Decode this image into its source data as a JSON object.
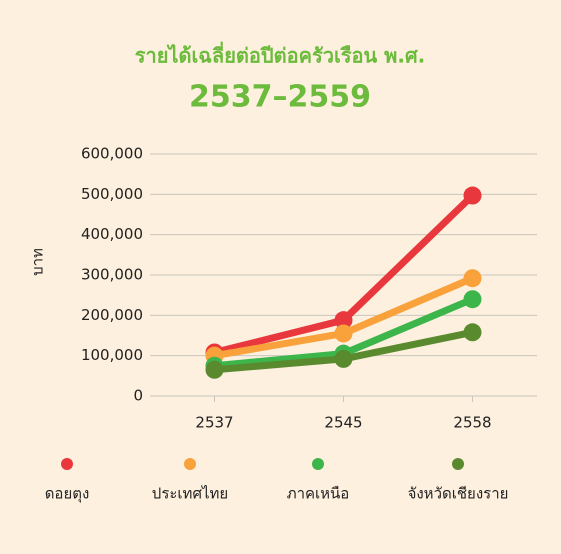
{
  "chart_data": {
    "type": "line",
    "title": "รายได้เฉลี่ยต่อปีต่อครัวเรือน พ.ศ.",
    "subtitle": "2537–2559",
    "y_label": "บาท",
    "categories": [
      "2537",
      "2545",
      "2558"
    ],
    "series": [
      {
        "name": "ดอยตุง",
        "color": "#e8383d",
        "values": [
          108000,
          188000,
          497000
        ]
      },
      {
        "name": "ประเทศไทย",
        "color": "#f9a13a",
        "values": [
          100000,
          155000,
          292000
        ]
      },
      {
        "name": "ภาคเหนือ",
        "color": "#3cb54a",
        "values": [
          75000,
          105000,
          240000
        ]
      },
      {
        "name": "จังหวัดเชียงราย",
        "color": "#5a8a2e",
        "values": [
          65000,
          92000,
          158000
        ]
      }
    ],
    "ylim": [
      0,
      600000
    ],
    "yticks": [
      0,
      {
        "value": 100000,
        "label": "100,000"
      },
      {
        "value": 200000,
        "label": "200,000"
      },
      {
        "value": 300000,
        "label": "300,000"
      },
      {
        "value": 400000,
        "label": "400,000"
      },
      {
        "value": 500000,
        "label": "500,000"
      },
      {
        "value": 600000,
        "label": "600,000"
      }
    ],
    "grid": true,
    "legend": "bottom"
  }
}
